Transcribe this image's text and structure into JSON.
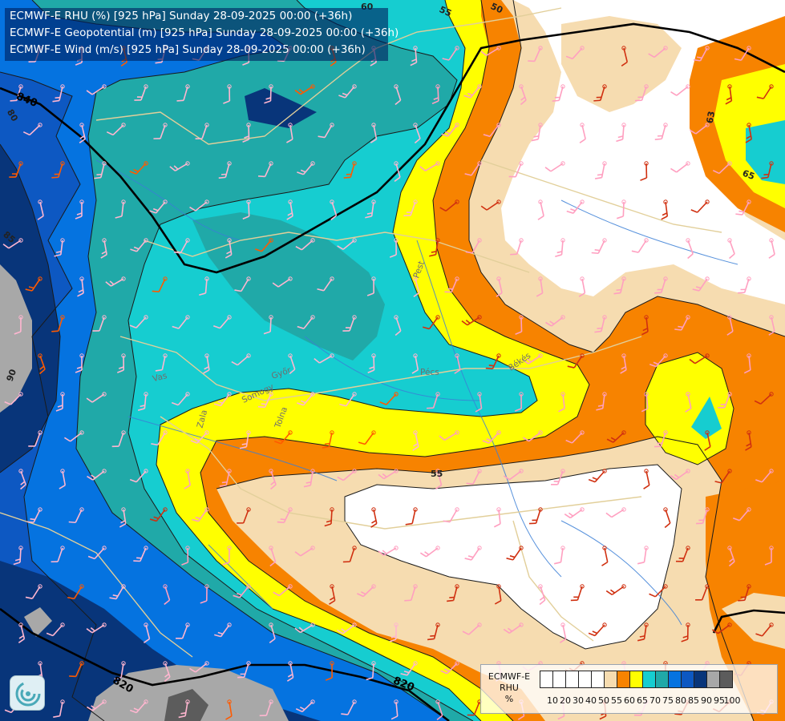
{
  "header": {
    "line1": "ECMWF-E RHU (%) [925 hPa] Sunday 28-09-2025 00:00 (+36h)",
    "line2": "ECMWF-E Geopotential (m) [925 hPa] Sunday 28-09-2025 00:00 (+36h)",
    "line3": "ECMWF-E Wind (m/s) [925 hPa] Sunday 28-09-2025 00:00 (+36h)"
  },
  "legend": {
    "title_model": "ECMWF-E",
    "title_var": "RHU",
    "title_unit": "%",
    "colors": [
      "#ffffff",
      "#ffffff",
      "#ffffff",
      "#ffffff",
      "#ffffff",
      "#f6dcb0",
      "#f78300",
      "#ffff00",
      "#16cdd0",
      "#20a9a8",
      "#0573e0",
      "#0d58c2",
      "#08357a",
      "#a8a8a8",
      "#5c5c5c"
    ],
    "ticks": [
      "10",
      "20",
      "30",
      "40",
      "50",
      "55",
      "60",
      "65",
      "70",
      "75",
      "80",
      "85",
      "90",
      "95",
      "100"
    ]
  },
  "contour_labels": {
    "geo_840": "840",
    "geo_820_a": "820",
    "geo_820_b": "820",
    "rh_60": "60",
    "rh_55_top": "55",
    "rh_55_mid": "55",
    "rh_63": "63",
    "rh_65": "65",
    "rh_50": "50",
    "rh_80": "80",
    "rh_90": "90",
    "rh_85": "85"
  },
  "place_labels": {
    "pecs": "Pécs",
    "bekes": "Békés",
    "zala": "Zala",
    "tolna": "Tolna",
    "somogy": "Somogy",
    "pest": "Pest",
    "gyor": "Győr",
    "vas": "Vas"
  },
  "logo": {
    "icon": "ecmwf-swirl-logo-icon"
  }
}
